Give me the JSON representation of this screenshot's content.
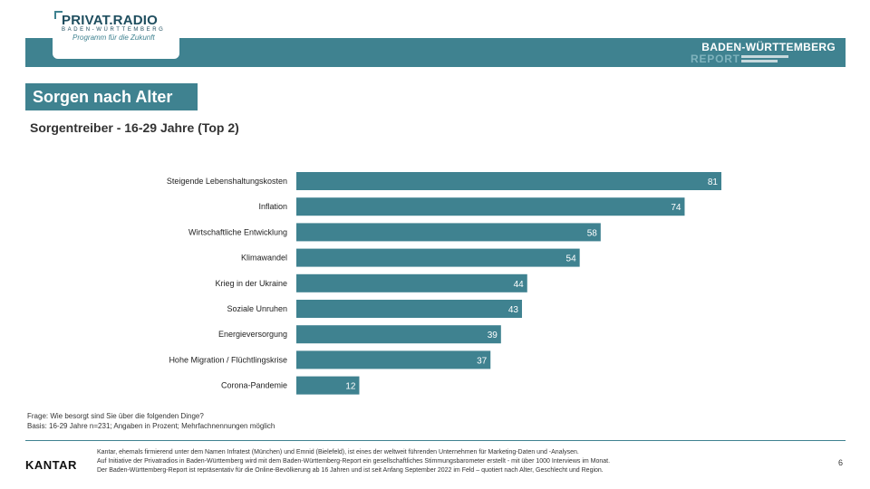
{
  "header": {
    "logo_main": "PRIVAT.RADIO",
    "logo_region": "BADEN-WÜRTTEMBERG",
    "logo_tagline": "Programm für die Zukunft",
    "report_line1": "BADEN-WÜRTTEMBERG",
    "report_line2": "REPORT"
  },
  "slide": {
    "title": "Sorgen nach Alter",
    "subtitle": "Sorgentreiber - 16-29 Jahre (Top 2)"
  },
  "chart_data": {
    "type": "bar",
    "orientation": "horizontal",
    "categories": [
      "Steigende Lebenshaltungskosten",
      "Inflation",
      "Wirtschaftliche Entwicklung",
      "Klimawandel",
      "Krieg in der Ukraine",
      "Soziale Unruhen",
      "Energieversorgung",
      "Hohe Migration / Flüchtlingskrise",
      "Corona-Pandemie"
    ],
    "values": [
      81,
      74,
      58,
      54,
      44,
      43,
      39,
      37,
      12
    ],
    "xlim": [
      0,
      100
    ],
    "bar_color": "#3f8290",
    "label_color": "#ffffff",
    "grid": false,
    "legend": "none"
  },
  "notes": {
    "question": "Frage: Wie besorgt sind Sie über die folgenden Dinge?",
    "base": "Basis: 16-29 Jahre n=231; Angaben in Prozent; Mehrfachnennungen möglich"
  },
  "footer": {
    "brand": "KANTAR",
    "line1": "Kantar, ehemals firmierend unter dem Namen Infratest (München) und Emnid (Bielefeld), ist eines der weltweit führenden Unternehmen für Marketing-Daten und -Analysen.",
    "line2": "Auf Initiative der Privatradios in Baden-Württemberg wird mit dem Baden-Württemberg-Report ein gesellschaftliches Stimmungsbarometer erstellt - mit über 1000 Interviews im Monat.",
    "line3": "Der Baden-Württemberg-Report ist repräsentativ für die Online-Bevölkerung ab 16 Jahren und ist seit Anfang September 2022 im Feld – quotiert nach Alter, Geschlecht und Region.",
    "page_number": "6"
  }
}
